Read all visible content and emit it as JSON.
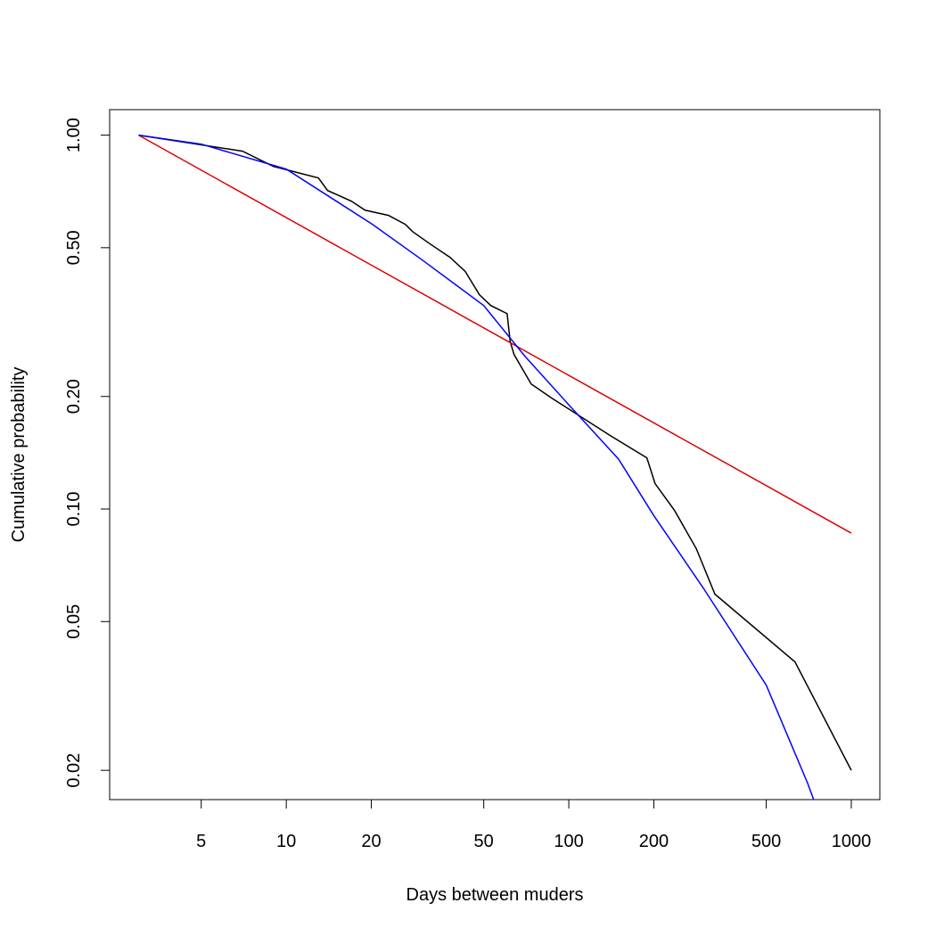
{
  "chart_data": {
    "type": "line",
    "x_label": "Days between muders",
    "y_label": "Cumulative probability",
    "xlog": true,
    "ylog": true,
    "xlim": [
      2.37,
      1262
    ],
    "ylim": [
      0.0167,
      1.17
    ],
    "xticks": [
      5,
      10,
      20,
      50,
      100,
      200,
      500,
      1000
    ],
    "yticks": [
      {
        "value": 1,
        "label": "1.00"
      },
      {
        "value": 0.5,
        "label": "0.50"
      },
      {
        "value": 0.2,
        "label": "0.20"
      },
      {
        "value": 0.1,
        "label": "0.10"
      },
      {
        "value": 0.05,
        "label": "0.05"
      },
      {
        "value": 0.02,
        "label": "0.02"
      }
    ],
    "series": [
      {
        "color": "#000000",
        "x": [
          3,
          7,
          9,
          13,
          14,
          17,
          19,
          23,
          26.4,
          28,
          32,
          38,
          43,
          48.3,
          53,
          60.5,
          62,
          64,
          73.6,
          87,
          140.6,
          189,
          202,
          237,
          283,
          329,
          632,
          1000
        ],
        "y": [
          1,
          0.906,
          0.825,
          0.768,
          0.711,
          0.666,
          0.63,
          0.61,
          0.577,
          0.552,
          0.514,
          0.471,
          0.432,
          0.374,
          0.35,
          0.333,
          0.281,
          0.259,
          0.216,
          0.198,
          0.157,
          0.137,
          0.117,
          0.099,
          0.0782,
          0.0592,
          0.039,
          0.02
        ]
      },
      {
        "color": "#dd0000",
        "x": [
          3,
          1000
        ],
        "y": [
          1,
          0.0862
        ]
      },
      {
        "color": "#0000ff",
        "x": [
          3,
          5,
          10,
          20,
          30,
          50,
          70,
          100,
          150,
          200,
          300,
          500,
          700,
          736
        ],
        "y": [
          1,
          0.946,
          0.811,
          0.58,
          0.466,
          0.35,
          0.256,
          0.19,
          0.136,
          0.096,
          0.0613,
          0.0338,
          0.0185,
          0.0167
        ]
      }
    ]
  }
}
